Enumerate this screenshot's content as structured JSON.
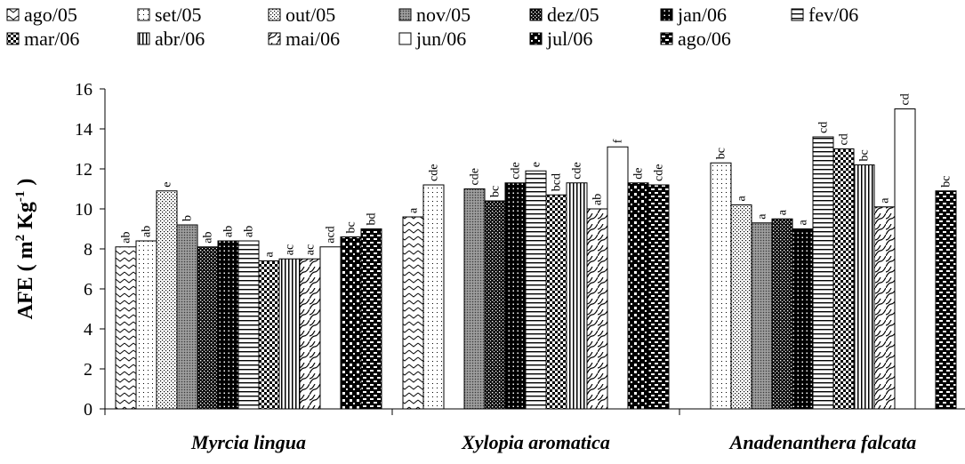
{
  "chart_data": {
    "type": "bar",
    "title": "",
    "xlabel": "",
    "ylabel": "AFE ( m2 Kg-1 )",
    "ylabel_parts": {
      "main": "AFE ( m",
      "sup1": "2",
      "mid": " Kg",
      "sup2": "-1",
      "end": " )"
    },
    "ylim": [
      0,
      16
    ],
    "yticks": [
      0,
      2,
      4,
      6,
      8,
      10,
      12,
      14,
      16
    ],
    "grid": false,
    "legend_position": "top",
    "categories": [
      "Myrcia lingua",
      "Xylopia aromatica",
      "Anadenanthera falcata"
    ],
    "series": [
      {
        "name": "ago/05",
        "pattern": "zigzag",
        "values": [
          8.1,
          9.6,
          null
        ],
        "labels": [
          "ab",
          "a",
          ""
        ]
      },
      {
        "name": "set/05",
        "pattern": "sparse-dots",
        "values": [
          8.4,
          11.2,
          12.3
        ],
        "labels": [
          "ab",
          "cde",
          "bc"
        ]
      },
      {
        "name": "out/05",
        "pattern": "dots",
        "values": [
          10.9,
          null,
          10.2
        ],
        "labels": [
          "e",
          "",
          "a"
        ]
      },
      {
        "name": "nov/05",
        "pattern": "gray-dense",
        "values": [
          9.2,
          11.0,
          9.3
        ],
        "labels": [
          "b",
          "cde",
          "a"
        ]
      },
      {
        "name": "dez/05",
        "pattern": "dark-dots",
        "values": [
          8.1,
          10.4,
          9.5
        ],
        "labels": [
          "ab",
          "bc",
          "a"
        ]
      },
      {
        "name": "jan/06",
        "pattern": "black-dots",
        "values": [
          8.4,
          11.3,
          9.0
        ],
        "labels": [
          "ab",
          "cde",
          "a"
        ]
      },
      {
        "name": "fev/06",
        "pattern": "hlines",
        "values": [
          8.4,
          11.9,
          13.6
        ],
        "labels": [
          "ab",
          "e",
          "cd"
        ]
      },
      {
        "name": "mar/06",
        "pattern": "checker",
        "values": [
          7.4,
          10.7,
          13.0
        ],
        "labels": [
          "a",
          "bcd",
          "cd"
        ]
      },
      {
        "name": "abr/06",
        "pattern": "vlines",
        "values": [
          7.5,
          11.3,
          12.2
        ],
        "labels": [
          "ac",
          "cde",
          "bc"
        ]
      },
      {
        "name": "mai/06",
        "pattern": "waves",
        "values": [
          7.5,
          10.0,
          10.1
        ],
        "labels": [
          "ac",
          "ab",
          "a"
        ]
      },
      {
        "name": "jun/06",
        "pattern": "solid",
        "values": [
          8.1,
          13.1,
          15.0
        ],
        "labels": [
          "acd",
          "f",
          "cd"
        ]
      },
      {
        "name": "jul/06",
        "pattern": "squares",
        "values": [
          8.6,
          11.3,
          null
        ],
        "labels": [
          "bc",
          "de",
          ""
        ]
      },
      {
        "name": "ago/06",
        "pattern": "bricks",
        "values": [
          9.0,
          11.2,
          10.9
        ],
        "labels": [
          "bd",
          "cde",
          "bc"
        ]
      }
    ]
  }
}
